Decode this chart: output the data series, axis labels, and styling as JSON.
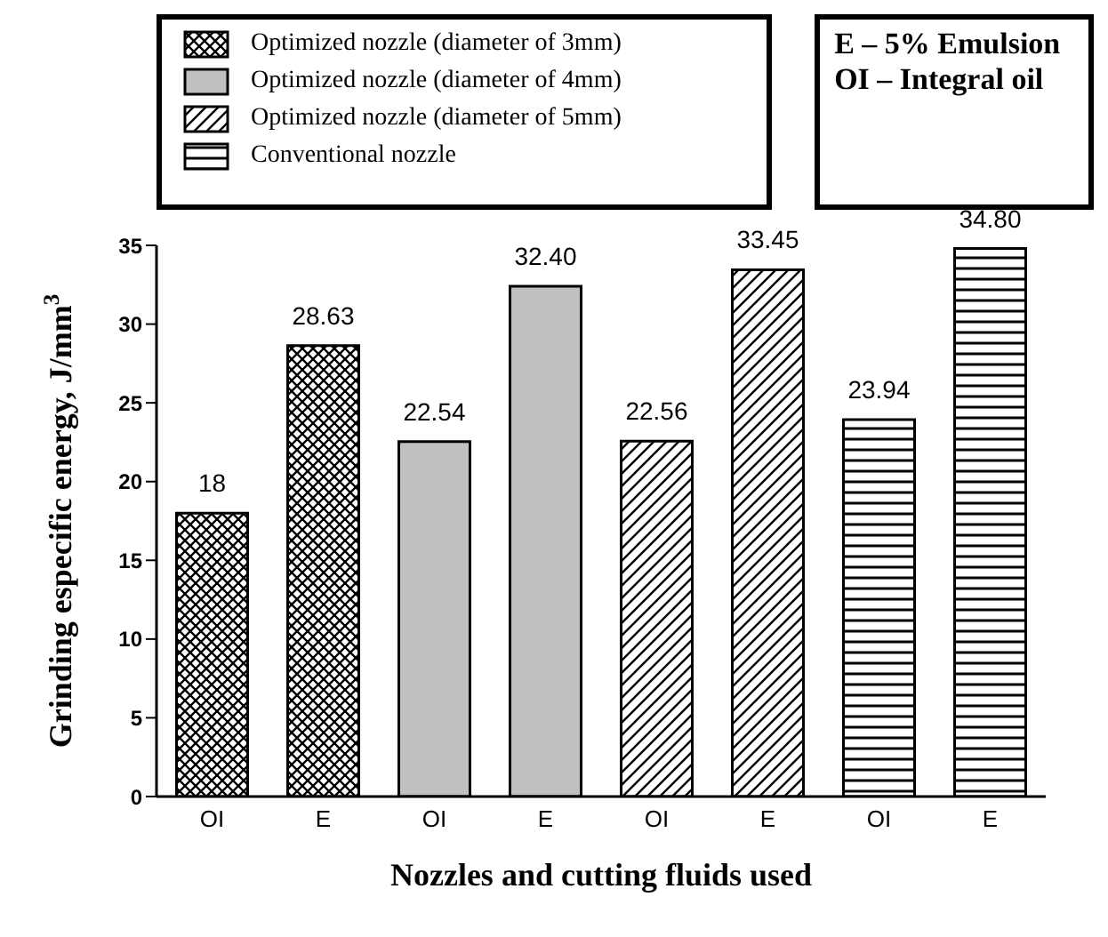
{
  "chart_data": {
    "type": "bar",
    "xlabel": "Nozzles and cutting fluids used",
    "ylabel": "Grinding especific energy, J/mm$^{3}$",
    "categories": [
      "OI",
      "E",
      "OI",
      "E",
      "OI",
      "E",
      "OI",
      "E"
    ],
    "series": [
      {
        "name": "Optimized nozzle (diameter of 3mm)",
        "color": "#000000",
        "values": [
          18,
          28.63,
          null,
          null,
          null,
          null,
          null,
          null
        ],
        "value_labels": [
          "18",
          "28.63",
          null,
          null,
          null,
          null,
          null,
          null
        ]
      },
      {
        "name": "Optimized nozzle (diameter of 4mm)",
        "color": "#c0c0c0",
        "values": [
          null,
          null,
          22.54,
          32.4,
          null,
          null,
          null,
          null
        ],
        "value_labels": [
          null,
          null,
          "22.54",
          "32.40",
          null,
          null,
          null,
          null
        ]
      },
      {
        "name": "Optimized nozzle (diameter of 5mm)",
        "color": "#000000",
        "values": [
          null,
          null,
          null,
          null,
          22.56,
          33.45,
          null,
          null
        ],
        "value_labels": [
          null,
          null,
          null,
          null,
          "22.56",
          "33.45",
          null,
          null
        ]
      },
      {
        "name": "Conventional nozzle",
        "color": "#000000",
        "values": [
          null,
          null,
          null,
          null,
          null,
          null,
          23.94,
          34.8
        ],
        "value_labels": [
          null,
          null,
          null,
          null,
          null,
          null,
          "23.94",
          "34.80"
        ]
      }
    ],
    "stacked": true,
    "ylim": [
      0,
      35
    ],
    "yticks": [
      0,
      5,
      10,
      15,
      20,
      25,
      30,
      35
    ],
    "grid": false,
    "legend": "top",
    "annotations": [
      "E – 5% Emulsion",
      "OI – Integral oil"
    ]
  }
}
